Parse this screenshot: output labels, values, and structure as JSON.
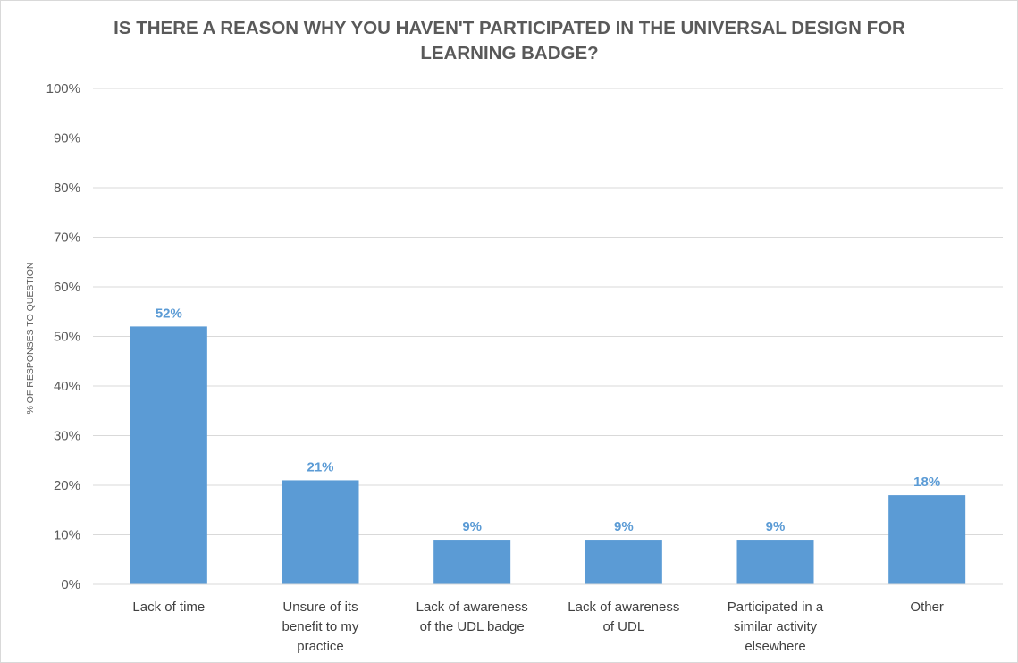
{
  "chart_data": {
    "type": "bar",
    "title": "IS THERE A REASON WHY YOU HAVEN'T PARTICIPATED IN THE UNIVERSAL DESIGN FOR LEARNING BADGE?",
    "xlabel": "",
    "ylabel": "% OF RESPONSES TO QUESTION",
    "categories": [
      "Lack of time",
      "Unsure of its benefit to my practice",
      "Lack of awareness of the UDL badge",
      "Lack of awareness of UDL",
      "Participated in a similar activity elsewhere",
      "Other"
    ],
    "values": [
      52,
      21,
      9,
      9,
      9,
      18
    ],
    "data_labels": [
      "52%",
      "21%",
      "9%",
      "9%",
      "9%",
      "18%"
    ],
    "ylim": [
      0,
      100
    ],
    "yticks": [
      "0%",
      "10%",
      "20%",
      "30%",
      "40%",
      "50%",
      "60%",
      "70%",
      "80%",
      "90%",
      "100%"
    ],
    "grid": true,
    "legend": "none",
    "bar_color": "#5b9bd5",
    "label_color": "#5b9bd5",
    "gridline_color": "#d9d9d9"
  }
}
